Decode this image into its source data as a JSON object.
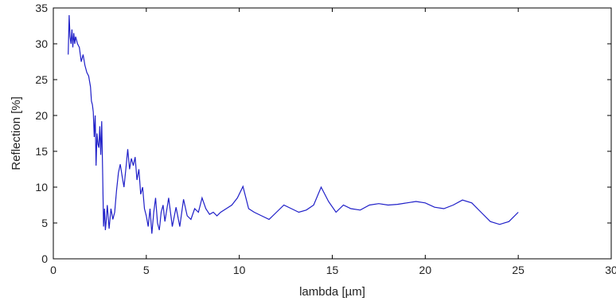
{
  "chart_data": {
    "type": "line",
    "title": "",
    "xlabel": "lambda [µm]",
    "ylabel": "Reflection [%]",
    "xlim": [
      0,
      30
    ],
    "ylim": [
      0,
      35
    ],
    "xticks": [
      0,
      5,
      10,
      15,
      20,
      25,
      30
    ],
    "yticks": [
      0,
      5,
      10,
      15,
      20,
      25,
      30,
      35
    ],
    "grid": false,
    "legend": "none",
    "line_color": "#1f1fc8",
    "series": [
      {
        "x": [
          0.8,
          0.85,
          0.9,
          0.95,
          1.0,
          1.05,
          1.1,
          1.15,
          1.2,
          1.3,
          1.4,
          1.5,
          1.6,
          1.7,
          1.8,
          1.9,
          2.0,
          2.05,
          2.1,
          2.15,
          2.2,
          2.25,
          2.3,
          2.35,
          2.4,
          2.45,
          2.5,
          2.55,
          2.6,
          2.65,
          2.7,
          2.75,
          2.8,
          2.85,
          2.9,
          3.0,
          3.1,
          3.2,
          3.3,
          3.4,
          3.5,
          3.6,
          3.7,
          3.8,
          3.9,
          4.0,
          4.1,
          4.2,
          4.3,
          4.4,
          4.5,
          4.6,
          4.7,
          4.8,
          4.9,
          5.0,
          5.1,
          5.2,
          5.3,
          5.4,
          5.5,
          5.6,
          5.7,
          5.8,
          5.9,
          6.0,
          6.2,
          6.4,
          6.6,
          6.8,
          7.0,
          7.2,
          7.4,
          7.6,
          7.8,
          8.0,
          8.2,
          8.4,
          8.6,
          8.8,
          9.0,
          9.3,
          9.6,
          9.9,
          10.2,
          10.5,
          10.8,
          11.2,
          11.6,
          12.0,
          12.4,
          12.8,
          13.2,
          13.6,
          14.0,
          14.4,
          14.8,
          15.2,
          15.6,
          16.0,
          16.5,
          17.0,
          17.5,
          18.0,
          18.5,
          19.0,
          19.5,
          20.0,
          20.5,
          21.0,
          21.5,
          22.0,
          22.5,
          23.0,
          23.5,
          24.0,
          24.5,
          25.0
        ],
        "y": [
          28.5,
          34.0,
          31.0,
          30.0,
          32.0,
          29.5,
          31.5,
          30.0,
          31.0,
          30.0,
          29.5,
          27.5,
          28.5,
          27.0,
          26.0,
          25.5,
          24.0,
          22.0,
          21.5,
          20.5,
          17.0,
          20.0,
          13.0,
          17.5,
          16.0,
          15.5,
          18.5,
          14.5,
          19.2,
          12.5,
          4.5,
          7.0,
          4.0,
          5.5,
          7.5,
          4.2,
          7.0,
          5.5,
          6.5,
          9.5,
          12.0,
          13.2,
          11.5,
          10.0,
          12.5,
          15.3,
          12.5,
          14.0,
          13.0,
          14.2,
          11.0,
          12.5,
          9.0,
          10.0,
          7.0,
          6.0,
          4.5,
          7.0,
          3.5,
          6.5,
          8.5,
          5.0,
          4.0,
          6.5,
          7.5,
          5.2,
          8.5,
          4.5,
          7.2,
          4.5,
          8.3,
          6.0,
          5.5,
          7.0,
          6.5,
          8.5,
          7.0,
          6.2,
          6.5,
          6.0,
          6.5,
          7.0,
          7.5,
          8.5,
          10.1,
          7.0,
          6.5,
          6.0,
          5.5,
          6.5,
          7.5,
          7.0,
          6.5,
          6.8,
          7.5,
          10.0,
          8.0,
          6.5,
          7.5,
          7.0,
          6.8,
          7.5,
          7.7,
          7.5,
          7.6,
          7.8,
          8.0,
          7.8,
          7.2,
          7.0,
          7.5,
          8.2,
          7.8,
          6.5,
          5.2,
          4.8,
          5.2,
          6.5
        ]
      }
    ]
  }
}
